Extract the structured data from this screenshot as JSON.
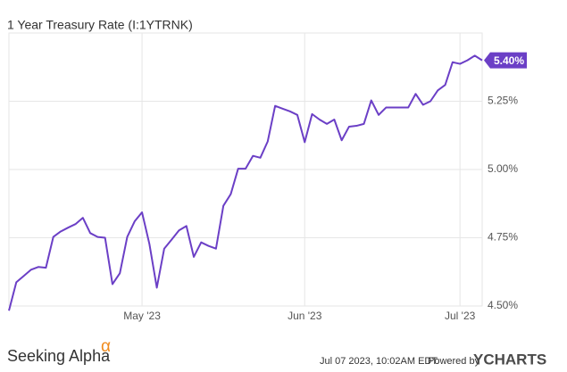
{
  "chart_data": {
    "type": "line",
    "title": "1 Year Treasury Rate (I:1YTRNK)",
    "categories": [
      null,
      null,
      null,
      null,
      null,
      null,
      null,
      null,
      null,
      null,
      null,
      null,
      null,
      null,
      null,
      null,
      null,
      null,
      "May '23",
      null,
      null,
      null,
      null,
      null,
      null,
      null,
      null,
      null,
      null,
      null,
      null,
      null,
      null,
      null,
      null,
      null,
      null,
      null,
      null,
      null,
      "Jun '23",
      null,
      null,
      null,
      null,
      null,
      null,
      null,
      null,
      null,
      null,
      null,
      null,
      null,
      null,
      null,
      null,
      null,
      null,
      null,
      null,
      "Jul '23",
      null,
      null,
      null
    ],
    "values": [
      4.483,
      4.587,
      4.61,
      4.633,
      4.643,
      4.64,
      4.753,
      4.773,
      4.787,
      4.8,
      4.823,
      4.767,
      4.753,
      4.75,
      4.58,
      4.62,
      4.753,
      4.81,
      4.843,
      4.727,
      4.567,
      4.71,
      4.743,
      4.777,
      4.793,
      4.68,
      4.733,
      4.72,
      4.71,
      4.867,
      4.91,
      5.003,
      5.003,
      5.05,
      5.043,
      5.103,
      5.233,
      5.223,
      5.213,
      5.2,
      5.1,
      5.203,
      5.183,
      5.167,
      5.183,
      5.107,
      5.157,
      5.16,
      5.167,
      5.253,
      5.2,
      5.227,
      5.227,
      5.227,
      5.227,
      5.277,
      5.237,
      5.25,
      5.29,
      5.31,
      5.393,
      5.387,
      5.4,
      5.417,
      5.4
    ],
    "value_labels": [
      null,
      null,
      null,
      null,
      null,
      null,
      null,
      null,
      null,
      null,
      null,
      null,
      null,
      null,
      null,
      null,
      null,
      null,
      null,
      null,
      null,
      null,
      null,
      null,
      null,
      null,
      null,
      null,
      null,
      null,
      null,
      null,
      null,
      null,
      null,
      null,
      null,
      null,
      null,
      null,
      null,
      null,
      null,
      null,
      null,
      null,
      null,
      null,
      null,
      null,
      null,
      null,
      null,
      null,
      null,
      null,
      null,
      null,
      null,
      null,
      null,
      null,
      null,
      null,
      "5.40%"
    ],
    "color": "#6b3fc6",
    "ylim": [
      4.5,
      5.5
    ],
    "yticks": [
      {
        "value": 4.5,
        "label": "4.50%"
      },
      {
        "value": 4.75,
        "label": "4.75%"
      },
      {
        "value": 5.0,
        "label": "5.00%"
      },
      {
        "value": 5.25,
        "label": "5.25%"
      }
    ],
    "grid": true
  },
  "footer": {
    "brand": "Seeking Alpha",
    "brand_mark": "α",
    "timestamp": "Jul 07 2023, 10:02AM EDT.",
    "powered_by": "Powered by",
    "provider": "YCHARTS"
  }
}
